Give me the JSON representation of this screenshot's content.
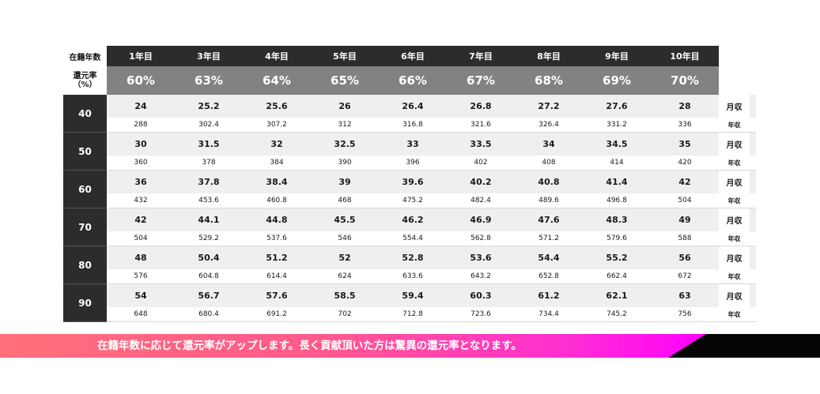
{
  "header": {
    "years_label": "在籍年数",
    "rate_label_line1": "還元率",
    "rate_label_line2": "（%）",
    "years": [
      "1年目",
      "3年目",
      "4年目",
      "5年目",
      "6年目",
      "7年目",
      "8年目",
      "9年目",
      "10年目"
    ],
    "rates": [
      "60%",
      "63%",
      "64%",
      "65%",
      "66%",
      "67%",
      "68%",
      "69%",
      "70%"
    ]
  },
  "units": {
    "monthly": "月収",
    "annual": "年収"
  },
  "groups": [
    {
      "amount": "40",
      "monthly": [
        "24",
        "25.2",
        "25.6",
        "26",
        "26.4",
        "26.8",
        "27.2",
        "27.6",
        "28"
      ],
      "annual": [
        "288",
        "302.4",
        "307.2",
        "312",
        "316.8",
        "321.6",
        "326.4",
        "331.2",
        "336"
      ]
    },
    {
      "amount": "50",
      "monthly": [
        "30",
        "31.5",
        "32",
        "32.5",
        "33",
        "33.5",
        "34",
        "34.5",
        "35"
      ],
      "annual": [
        "360",
        "378",
        "384",
        "390",
        "396",
        "402",
        "408",
        "414",
        "420"
      ]
    },
    {
      "amount": "60",
      "monthly": [
        "36",
        "37.8",
        "38.4",
        "39",
        "39.6",
        "40.2",
        "40.8",
        "41.4",
        "42"
      ],
      "annual": [
        "432",
        "453.6",
        "460.8",
        "468",
        "475.2",
        "482.4",
        "489.6",
        "496.8",
        "504"
      ]
    },
    {
      "amount": "70",
      "monthly": [
        "42",
        "44.1",
        "44.8",
        "45.5",
        "46.2",
        "46.9",
        "47.6",
        "48.3",
        "49"
      ],
      "annual": [
        "504",
        "529.2",
        "537.6",
        "546",
        "554.4",
        "562.8",
        "571.2",
        "579.6",
        "588"
      ]
    },
    {
      "amount": "80",
      "monthly": [
        "48",
        "50.4",
        "51.2",
        "52",
        "52.8",
        "53.6",
        "54.4",
        "55.2",
        "56"
      ],
      "annual": [
        "576",
        "604.8",
        "614.4",
        "624",
        "633.6",
        "643.2",
        "652.8",
        "662.4",
        "672"
      ]
    },
    {
      "amount": "90",
      "monthly": [
        "54",
        "56.7",
        "57.6",
        "58.5",
        "59.4",
        "60.3",
        "61.2",
        "62.1",
        "63"
      ],
      "annual": [
        "648",
        "680.4",
        "691.2",
        "702",
        "712.8",
        "723.6",
        "734.4",
        "745.2",
        "756"
      ]
    }
  ],
  "banner": {
    "text": "在籍年数に応じて還元率がアップします。長く貢献頂いた方は驚異の還元率となります。"
  }
}
